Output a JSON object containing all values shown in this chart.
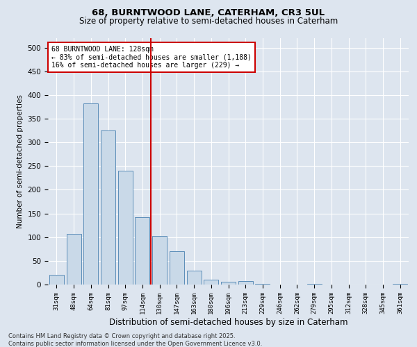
{
  "title1": "68, BURNTWOOD LANE, CATERHAM, CR3 5UL",
  "title2": "Size of property relative to semi-detached houses in Caterham",
  "xlabel": "Distribution of semi-detached houses by size in Caterham",
  "ylabel": "Number of semi-detached properties",
  "categories": [
    "31sqm",
    "48sqm",
    "64sqm",
    "81sqm",
    "97sqm",
    "114sqm",
    "130sqm",
    "147sqm",
    "163sqm",
    "180sqm",
    "196sqm",
    "213sqm",
    "229sqm",
    "246sqm",
    "262sqm",
    "279sqm",
    "295sqm",
    "312sqm",
    "328sqm",
    "345sqm",
    "361sqm"
  ],
  "values": [
    20,
    107,
    383,
    325,
    240,
    142,
    102,
    70,
    30,
    10,
    6,
    7,
    1,
    0,
    0,
    1,
    0,
    0,
    0,
    0,
    2
  ],
  "bar_color": "#c9d9e8",
  "bar_edge_color": "#5b8db8",
  "bg_color": "#dde5ef",
  "grid_color": "#ffffff",
  "vline_x": 5.5,
  "vline_color": "#cc0000",
  "annotation_title": "68 BURNTWOOD LANE: 128sqm",
  "annotation_line1": "← 83% of semi-detached houses are smaller (1,188)",
  "annotation_line2": "16% of semi-detached houses are larger (229) →",
  "annotation_box_color": "#ffffff",
  "annotation_box_edge": "#cc0000",
  "footer1": "Contains HM Land Registry data © Crown copyright and database right 2025.",
  "footer2": "Contains public sector information licensed under the Open Government Licence v3.0.",
  "ylim": [
    0,
    520
  ],
  "yticks": [
    0,
    50,
    100,
    150,
    200,
    250,
    300,
    350,
    400,
    450,
    500
  ]
}
